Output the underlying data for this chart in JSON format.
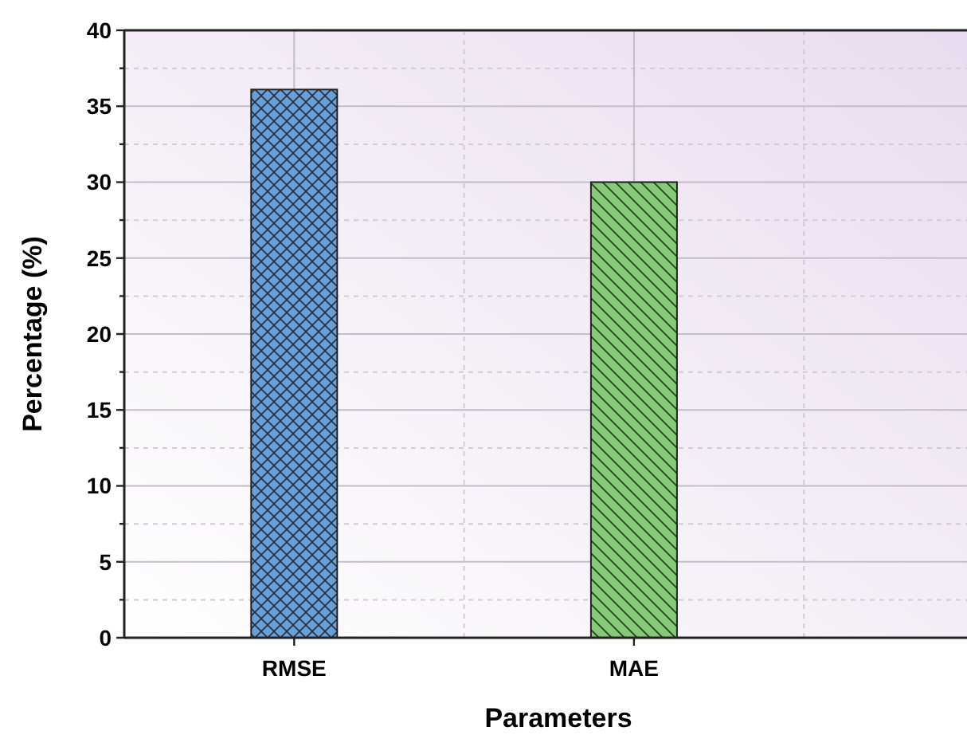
{
  "chart_data": {
    "type": "bar",
    "xlabel": "Parameters",
    "ylabel": "Percentage (%)",
    "categories": [
      "RMSE",
      "MAE"
    ],
    "values": [
      36.1,
      30.0
    ],
    "colors": [
      "#6a9fd4",
      "#86c978"
    ],
    "ylim": [
      0,
      40
    ],
    "yticks": [
      0,
      {
        "value": 2.5,
        "label": null
      },
      5,
      {
        "value": 7.5,
        "label": null
      },
      10,
      {
        "value": 12.5,
        "label": null
      },
      15,
      {
        "value": 17.5,
        "label": null
      },
      20,
      {
        "value": 22.5,
        "label": null
      },
      25,
      {
        "value": 27.5,
        "label": null
      },
      30,
      {
        "value": 32.5,
        "label": null
      },
      35,
      {
        "value": 37.5,
        "label": null
      },
      40
    ],
    "grid": true
  }
}
